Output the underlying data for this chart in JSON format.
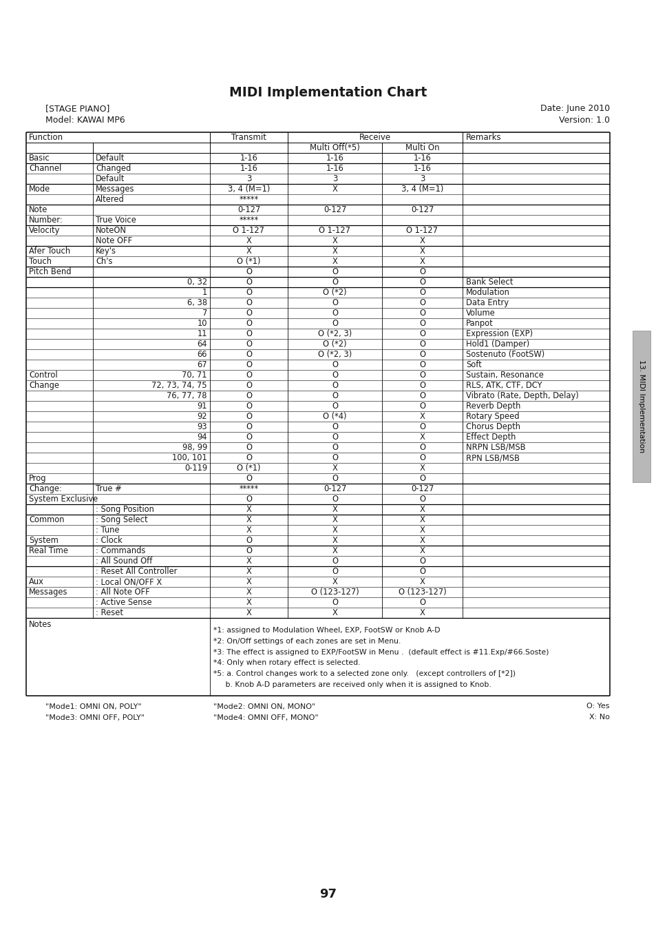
{
  "title": "MIDI Implementation Chart",
  "stage_piano": "[STAGE PIANO]",
  "model": "Model: KAWAI MP6",
  "date": "Date: June 2010",
  "version": "Version: 1.0",
  "rows": [
    [
      "Basic",
      "Default",
      "1-16",
      "1-16",
      "1-16",
      ""
    ],
    [
      "Channel",
      "Changed",
      "1-16",
      "1-16",
      "1-16",
      ""
    ],
    [
      "",
      "Default",
      "3",
      "3",
      "3",
      ""
    ],
    [
      "Mode",
      "Messages",
      "3, 4 (M=1)",
      "X",
      "3, 4 (M=1)",
      ""
    ],
    [
      "",
      "Altered",
      "*****",
      "",
      "",
      ""
    ],
    [
      "Note",
      "",
      "0-127",
      "0-127",
      "0-127",
      ""
    ],
    [
      "Number:",
      "True Voice",
      "*****",
      "",
      "",
      ""
    ],
    [
      "Velocity",
      "NoteON",
      "O 1-127",
      "O 1-127",
      "O 1-127",
      ""
    ],
    [
      "",
      "Note OFF",
      "X",
      "X",
      "X",
      ""
    ],
    [
      "Afer Touch",
      "Key's",
      "X",
      "X",
      "X",
      ""
    ],
    [
      "Touch",
      "Ch's",
      "O (*1)",
      "X",
      "X",
      ""
    ],
    [
      "Pitch Bend",
      "",
      "O",
      "O",
      "O",
      ""
    ],
    [
      "",
      "0, 32",
      "O",
      "O",
      "O",
      "Bank Select"
    ],
    [
      "",
      "1",
      "O",
      "O (*2)",
      "O",
      "Modulation"
    ],
    [
      "",
      "6, 38",
      "O",
      "O",
      "O",
      "Data Entry"
    ],
    [
      "",
      "7",
      "O",
      "O",
      "O",
      "Volume"
    ],
    [
      "",
      "10",
      "O",
      "O",
      "O",
      "Panpot"
    ],
    [
      "",
      "11",
      "O",
      "O (*2, 3)",
      "O",
      "Expression (EXP)"
    ],
    [
      "",
      "64",
      "O",
      "O (*2)",
      "O",
      "Hold1 (Damper)"
    ],
    [
      "",
      "66",
      "O",
      "O (*2, 3)",
      "O",
      "Sostenuto (FootSW)"
    ],
    [
      "",
      "67",
      "O",
      "O",
      "O",
      "Soft"
    ],
    [
      "Control",
      "70, 71",
      "O",
      "O",
      "O",
      "Sustain, Resonance"
    ],
    [
      "Change",
      "72, 73, 74, 75",
      "O",
      "O",
      "O",
      "RLS, ATK, CTF, DCY"
    ],
    [
      "",
      "76, 77, 78",
      "O",
      "O",
      "O",
      "Vibrato (Rate, Depth, Delay)"
    ],
    [
      "",
      "91",
      "O",
      "O",
      "O",
      "Reverb Depth"
    ],
    [
      "",
      "92",
      "O",
      "O (*4)",
      "X",
      "Rotary Speed"
    ],
    [
      "",
      "93",
      "O",
      "O",
      "O",
      "Chorus Depth"
    ],
    [
      "",
      "94",
      "O",
      "O",
      "X",
      "Effect Depth"
    ],
    [
      "",
      "98, 99",
      "O",
      "O",
      "O",
      "NRPN LSB/MSB"
    ],
    [
      "",
      "100, 101",
      "O",
      "O",
      "O",
      "RPN LSB/MSB"
    ],
    [
      "",
      "0-119",
      "O (*1)",
      "X",
      "X",
      ""
    ],
    [
      "Prog",
      "",
      "O",
      "O",
      "O",
      ""
    ],
    [
      "Change:",
      "True #",
      "*****",
      "0-127",
      "0-127",
      ""
    ],
    [
      "System Exclusive",
      "",
      "O",
      "O",
      "O",
      ""
    ],
    [
      "",
      ": Song Position",
      "X",
      "X",
      "X",
      ""
    ],
    [
      "Common",
      ": Song Select",
      "X",
      "X",
      "X",
      ""
    ],
    [
      "",
      ": Tune",
      "X",
      "X",
      "X",
      ""
    ],
    [
      "System",
      ": Clock",
      "O",
      "X",
      "X",
      ""
    ],
    [
      "Real Time",
      ": Commands",
      "O",
      "X",
      "X",
      ""
    ],
    [
      "",
      ": All Sound Off",
      "X",
      "O",
      "O",
      ""
    ],
    [
      "",
      ": Reset All Controller",
      "X",
      "O",
      "O",
      ""
    ],
    [
      "Aux",
      ": Local ON/OFF X",
      "X",
      "X",
      "X",
      ""
    ],
    [
      "Messages",
      ": All Note OFF",
      "X",
      "O (123-127)",
      "O (123-127)",
      ""
    ],
    [
      "",
      ": Active Sense",
      "X",
      "O",
      "O",
      ""
    ],
    [
      "",
      ": Reset",
      "X",
      "X",
      "X",
      ""
    ]
  ],
  "notes": [
    "*1: assigned to Modulation Wheel, EXP, FootSW or Knob A-D",
    "*2: On/Off settings of each zones are set in Menu.",
    "*3: The effect is assigned to EXP/FootSW in Menu .  (default effect is #11.Exp/#66.Soste)",
    "*4: Only when rotary effect is selected.",
    "*5: a. Control changes work to a selected zone only.   (except controllers of [*2])",
    "     b. Knob A-D parameters are received only when it is assigned to Knob."
  ],
  "footer_left1": "\"Mode1: OMNI ON, POLY\"",
  "footer_left2": "\"Mode3: OMNI OFF, POLY\"",
  "footer_mid1": "\"Mode2: OMNI ON, MONO\"",
  "footer_mid2": "\"Mode4: OMNI OFF, MONO\"",
  "footer_right1": "O: Yes",
  "footer_right2": "X: No",
  "side_tab_text": "13. MIDI Implementation",
  "page_num": "97",
  "thick_top_rows": [
    0,
    2,
    4,
    6,
    8,
    10,
    11,
    12,
    31,
    33,
    34,
    37,
    39
  ],
  "num_right_align_rows": [
    12,
    13,
    14,
    15,
    16,
    17,
    18,
    19,
    20,
    21,
    22,
    23,
    24,
    25,
    26,
    27,
    28,
    29,
    30
  ]
}
